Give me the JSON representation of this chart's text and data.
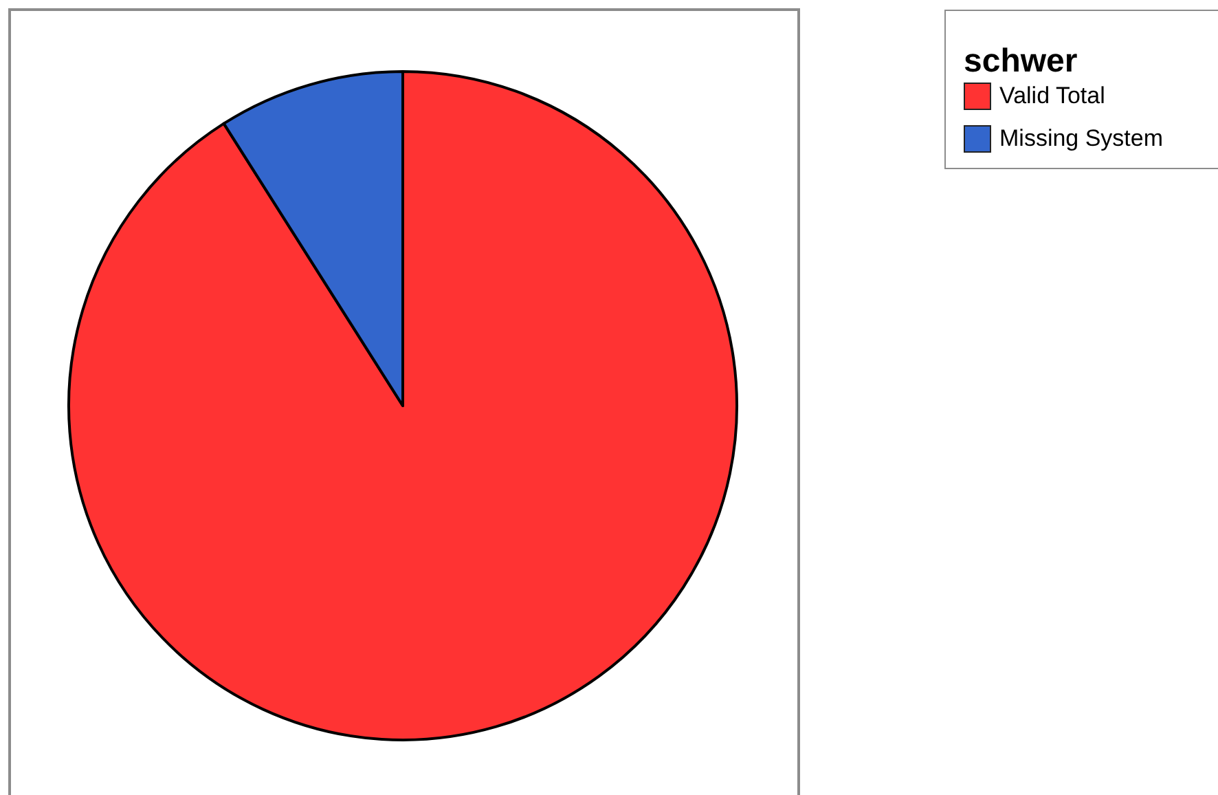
{
  "chart_data": {
    "type": "pie",
    "legend_title": "schwer",
    "categories": [
      "Valid Total",
      "Missing System"
    ],
    "values": [
      91,
      9
    ],
    "colors": [
      "#ff3333",
      "#3366cc"
    ],
    "legend": "top right"
  }
}
